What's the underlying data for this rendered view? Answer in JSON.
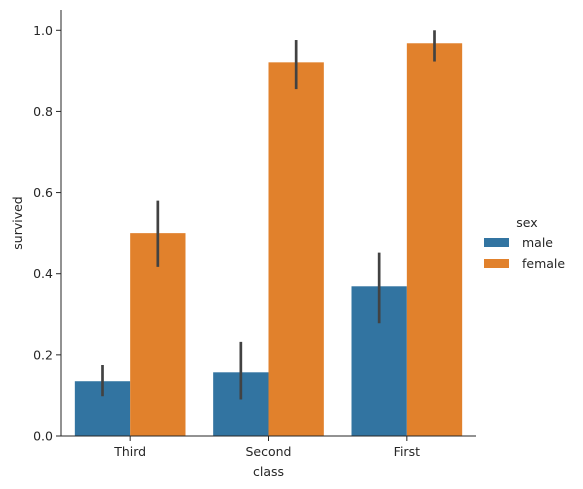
{
  "chart_data": {
    "type": "bar",
    "title": "",
    "xlabel": "class",
    "ylabel": "survived",
    "categories": [
      "Third",
      "Second",
      "First"
    ],
    "ylim": [
      0,
      1.05
    ],
    "yticks": [
      0.0,
      0.2,
      0.4,
      0.6,
      0.8,
      1.0
    ],
    "ytick_labels": [
      "0.0",
      "0.2",
      "0.4",
      "0.6",
      "0.8",
      "1.0"
    ],
    "grid": false,
    "legend": {
      "title": "sex",
      "placement": "right"
    },
    "series": [
      {
        "name": "male",
        "color": "#3274a1",
        "values": [
          0.135,
          0.157,
          0.369
        ],
        "ci": [
          [
            0.098,
            0.175
          ],
          [
            0.09,
            0.232
          ],
          [
            0.278,
            0.452
          ]
        ]
      },
      {
        "name": "female",
        "color": "#e1812c",
        "values": [
          0.5,
          0.921,
          0.968
        ],
        "ci": [
          [
            0.417,
            0.58
          ],
          [
            0.855,
            0.976
          ],
          [
            0.923,
            1.0
          ]
        ]
      }
    ],
    "errorbar_color": "#424242"
  }
}
